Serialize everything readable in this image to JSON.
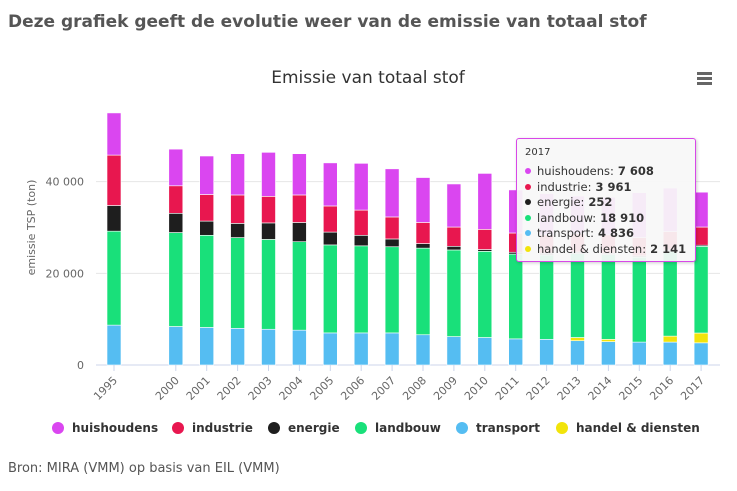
{
  "page": {
    "heading": "Deze grafiek geeft de evolutie weer van de emissie van totaal stof",
    "source": "Bron: MIRA (VMM) op basis van EIL (VMM)",
    "menu_icon": "hamburger-icon"
  },
  "chart_data": {
    "type": "bar",
    "stacked": true,
    "title": "Emissie van totaal stof",
    "xlabel": "",
    "ylabel": "emissie TSP (ton)",
    "ylim": [
      0,
      60000
    ],
    "yticks": [
      0,
      20000,
      40000
    ],
    "ytick_labels": [
      "0",
      "20 000",
      "40 000"
    ],
    "grid": true,
    "legend_position": "bottom",
    "categories": [
      "1995",
      "2000",
      "2001",
      "2002",
      "2003",
      "2004",
      "2005",
      "2006",
      "2007",
      "2008",
      "2009",
      "2010",
      "2011",
      "2012",
      "2013",
      "2014",
      "2015",
      "2016",
      "2017"
    ],
    "series": [
      {
        "name": "transport",
        "color": "#55bdf2",
        "values": [
          8700,
          8400,
          8200,
          8000,
          7800,
          7600,
          7000,
          7000,
          7000,
          6600,
          6200,
          6000,
          5700,
          5600,
          5300,
          5100,
          5000,
          5000,
          4836
        ]
      },
      {
        "name": "handel & diensten",
        "color": "#f2e40a",
        "values": [
          0,
          0,
          0,
          0,
          0,
          0,
          0,
          0,
          0,
          0,
          0,
          0,
          0,
          0,
          700,
          500,
          0,
          1300,
          2141
        ]
      },
      {
        "name": "landbouw",
        "color": "#19e07a",
        "values": [
          20500,
          20500,
          20100,
          19800,
          19600,
          19300,
          19200,
          19000,
          18800,
          18900,
          18900,
          18800,
          18500,
          18400,
          18300,
          18500,
          18500,
          18500,
          18910
        ]
      },
      {
        "name": "energie",
        "color": "#1e1e1e",
        "values": [
          5600,
          4200,
          3100,
          3100,
          3600,
          4200,
          2800,
          2300,
          1700,
          1000,
          800,
          400,
          400,
          400,
          350,
          300,
          300,
          300,
          252
        ]
      },
      {
        "name": "industrie",
        "color": "#e8174f",
        "values": [
          11000,
          6000,
          5800,
          6200,
          5800,
          6000,
          5700,
          5500,
          4800,
          4600,
          4200,
          4400,
          4200,
          4000,
          4000,
          4000,
          4000,
          4000,
          3961
        ]
      },
      {
        "name": "huishoudens",
        "color": "#da46f0",
        "values": [
          9200,
          8000,
          8400,
          9000,
          9600,
          9000,
          9400,
          10200,
          10500,
          9800,
          9400,
          12200,
          9400,
          9000,
          8200,
          8200,
          9800,
          9500,
          7608
        ]
      }
    ],
    "legend_order": [
      "huishoudens",
      "industrie",
      "energie",
      "landbouw",
      "transport",
      "handel & diensten"
    ]
  },
  "tooltip": {
    "year": "2017",
    "rows": [
      {
        "label": "huishoudens:",
        "value": "7 608",
        "color": "#da46f0"
      },
      {
        "label": "industrie:",
        "value": "3 961",
        "color": "#e8174f"
      },
      {
        "label": "energie:",
        "value": "252",
        "color": "#1e1e1e"
      },
      {
        "label": "landbouw:",
        "value": "18 910",
        "color": "#19e07a"
      },
      {
        "label": "transport:",
        "value": "4 836",
        "color": "#55bdf2"
      },
      {
        "label": "handel & diensten:",
        "value": "2 141",
        "color": "#f2e40a"
      }
    ]
  }
}
